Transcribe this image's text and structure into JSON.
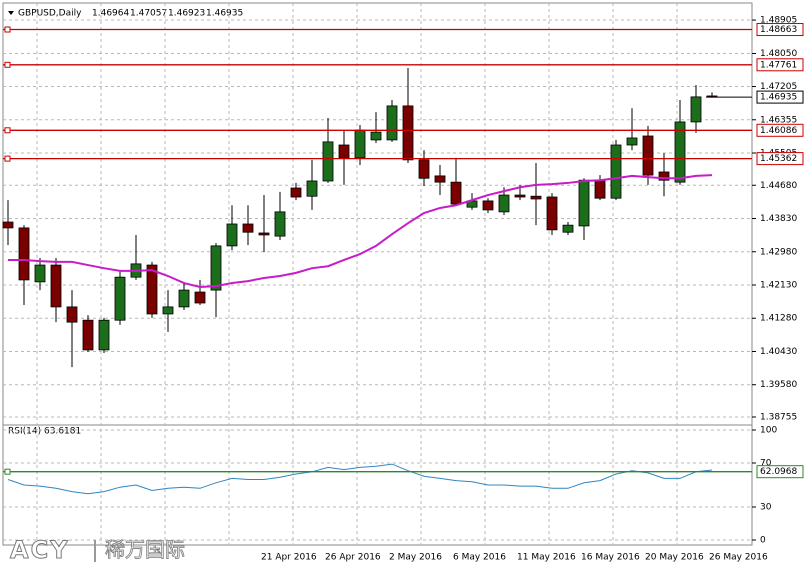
{
  "chart_data": [
    {
      "type": "candlestick",
      "title": "GBPUSD,Daily",
      "categories": [
        null,
        null,
        null,
        null,
        null,
        null,
        null,
        null,
        null,
        null,
        null,
        null,
        null,
        null,
        null,
        null,
        "21 Apr 2016",
        null,
        null,
        null,
        "26 Apr 2016",
        null,
        null,
        null,
        "2 May 2016",
        null,
        null,
        null,
        "6 May 2016",
        null,
        null,
        null,
        "11 May 2016",
        null,
        null,
        null,
        "16 May 2016",
        null,
        null,
        null,
        "20 May 2016",
        null,
        null,
        null,
        "26 May 2016"
      ],
      "open": [
        1.4374,
        1.4359,
        1.4221,
        1.4264,
        1.4157,
        1.4123,
        1.4047,
        1.4123,
        1.4233,
        1.4264,
        1.4139,
        1.4157,
        1.4195,
        1.42,
        1.4313,
        1.4369,
        1.4346,
        1.4338,
        1.4461,
        1.444,
        1.4479,
        1.4571,
        1.4538,
        1.4584,
        1.4584,
        1.4671,
        1.4533,
        1.4492,
        1.4476,
        1.4412,
        1.4428,
        1.44,
        1.4443,
        1.444,
        1.4438,
        1.4348,
        1.4364,
        1.4481,
        1.4435,
        1.4571,
        1.4594,
        1.4502,
        1.4476,
        1.463,
        1.46964
      ],
      "high": [
        1.443,
        1.4366,
        1.4282,
        1.4282,
        1.42,
        1.4136,
        1.4129,
        1.4251,
        1.4341,
        1.4272,
        1.42,
        1.4221,
        1.4226,
        1.432,
        1.4417,
        1.4417,
        1.4443,
        1.4451,
        1.4474,
        1.4533,
        1.464,
        1.4609,
        1.4622,
        1.4655,
        1.4686,
        1.4768,
        1.4558,
        1.452,
        1.4538,
        1.4448,
        1.4435,
        1.4463,
        1.4469,
        1.4525,
        1.4448,
        1.4374,
        1.4486,
        1.4494,
        1.4584,
        1.4665,
        1.462,
        1.455,
        1.4686,
        1.4724,
        1.47057
      ],
      "low": [
        1.4315,
        1.4162,
        1.42,
        1.4118,
        1.4003,
        1.4042,
        1.4039,
        1.4111,
        1.4226,
        1.4129,
        1.4093,
        1.4149,
        1.4162,
        1.4131,
        1.4302,
        1.4315,
        1.4297,
        1.4328,
        1.443,
        1.4405,
        1.4474,
        1.4469,
        1.452,
        1.4576,
        1.4579,
        1.4525,
        1.4466,
        1.4443,
        1.4415,
        1.4405,
        1.4397,
        1.4392,
        1.443,
        1.4366,
        1.4341,
        1.4341,
        1.4328,
        1.443,
        1.443,
        1.4558,
        1.4469,
        1.444,
        1.4469,
        1.4602,
        1.46923
      ],
      "close": [
        1.4359,
        1.4226,
        1.4264,
        1.4157,
        1.4118,
        1.4047,
        1.4123,
        1.4233,
        1.4267,
        1.4139,
        1.4157,
        1.42,
        1.4167,
        1.4313,
        1.4369,
        1.4348,
        1.4341,
        1.44,
        1.4438,
        1.4479,
        1.4579,
        1.4538,
        1.4609,
        1.4604,
        1.4671,
        1.4533,
        1.4486,
        1.4476,
        1.442,
        1.4428,
        1.4405,
        1.4443,
        1.4438,
        1.4433,
        1.4354,
        1.4366,
        1.4481,
        1.4435,
        1.4571,
        1.4589,
        1.4494,
        1.4481,
        1.463,
        1.4694,
        1.46935
      ],
      "colors": {
        "up": "#1c6e1c",
        "down": "#7a0000"
      },
      "ma": {
        "color": "#c81cc8",
        "values": [
          1.4277,
          1.4277,
          1.4274,
          1.4272,
          1.4272,
          1.4264,
          1.4256,
          1.4249,
          1.4249,
          1.4251,
          1.4236,
          1.4218,
          1.4208,
          1.421,
          1.4218,
          1.4223,
          1.4231,
          1.4236,
          1.4244,
          1.4256,
          1.4261,
          1.4277,
          1.4292,
          1.4313,
          1.4343,
          1.4371,
          1.4397,
          1.441,
          1.4417,
          1.443,
          1.4443,
          1.4453,
          1.4463,
          1.4469,
          1.4471,
          1.4474,
          1.4479,
          1.4481,
          1.4486,
          1.4492,
          1.4489,
          1.4486,
          1.4486,
          1.4492,
          1.4494
        ]
      },
      "levels": {
        "color": "#c80000",
        "values": [
          1.48663,
          1.47761,
          1.46086,
          1.45362
        ]
      },
      "ylim": [
        1.3855,
        1.4929
      ],
      "yticks": [
        1.48905,
        {
          "value": 1.4805,
          "label": "1.48050"
        },
        1.47205,
        1.46355,
        1.45505,
        {
          "value": 1.4468,
          "label": "1.44680"
        },
        {
          "value": 1.4383,
          "label": "1.43830"
        },
        {
          "value": 1.4298,
          "label": "1.42980"
        },
        {
          "value": 1.4213,
          "label": "1.42130"
        },
        {
          "value": 1.4128,
          "label": "1.41280"
        },
        {
          "value": 1.4043,
          "label": "1.40430"
        },
        {
          "value": 1.3958,
          "label": "1.39580"
        },
        1.38755
      ],
      "grid": true
    },
    {
      "type": "line",
      "title": "RSI(14)",
      "color": "#2f86c0",
      "values": [
        55,
        50,
        49,
        47,
        44,
        42,
        44,
        48,
        50,
        45,
        47,
        48,
        47,
        52,
        56,
        55,
        55,
        57,
        60,
        62,
        66,
        64,
        66,
        67,
        69,
        63,
        58,
        56,
        54,
        53,
        50,
        50,
        49,
        49,
        47,
        47,
        52,
        54,
        60,
        63,
        61,
        56,
        56,
        62,
        63.6181
      ],
      "levels": {
        "color": "#2a8a2a",
        "values": [
          62.0968
        ]
      },
      "ylim": [
        0,
        100
      ],
      "yticks": [
        0,
        30,
        70,
        100
      ],
      "grid": true
    }
  ],
  "logo": {
    "brand": "ACY",
    "name": "稀万国际"
  }
}
